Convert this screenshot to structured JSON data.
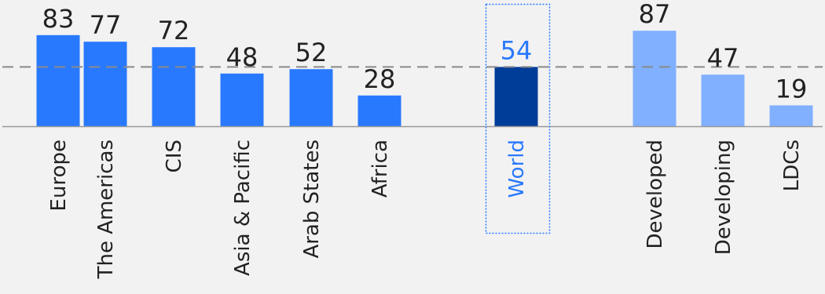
{
  "chart_data": {
    "type": "bar",
    "title": "",
    "xlabel": "",
    "ylabel": "",
    "ylim": [
      0,
      100
    ],
    "reference_value": 54,
    "grid": false,
    "categories": [
      "Europe",
      "The Americas",
      "CIS",
      "Asia & Pacific",
      "Arab States",
      "Africa",
      "World",
      "Developed",
      "Developing",
      "LDCs"
    ],
    "values": [
      83,
      77,
      72,
      48,
      52,
      28,
      54,
      87,
      47,
      19
    ],
    "groups": [
      "region",
      "region",
      "region",
      "region",
      "region",
      "region",
      "world",
      "development",
      "development",
      "development"
    ],
    "colors": {
      "region": "#2979ff",
      "world": "#003d99",
      "development": "#80b0ff",
      "world_label": "#2979ff",
      "text": "#222222",
      "reference_line": "#8a8a8a",
      "baseline": "#999999",
      "highlight_box": "#2979ff"
    }
  }
}
